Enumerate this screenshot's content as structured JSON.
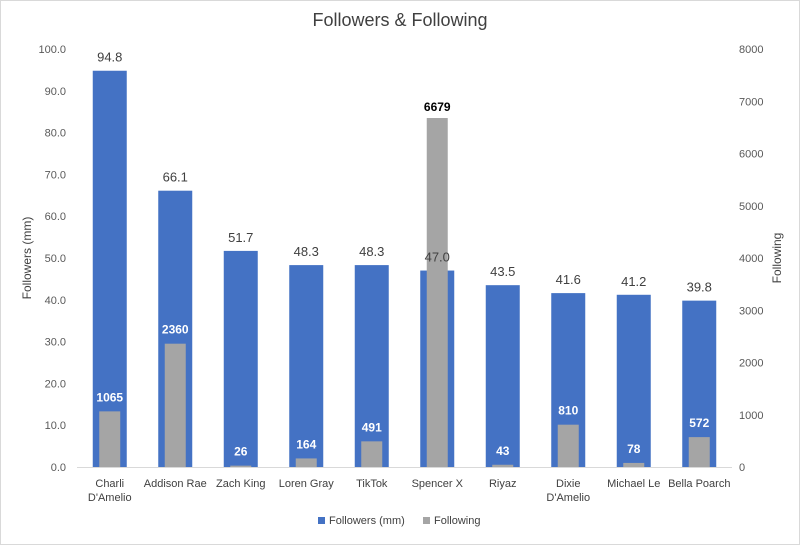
{
  "chart_data": {
    "type": "bar",
    "title": "Followers & Following",
    "categories": [
      [
        "Charli",
        "D'Amelio"
      ],
      [
        "Addison Rae"
      ],
      [
        "Zach King"
      ],
      [
        "Loren Gray"
      ],
      [
        "TikTok"
      ],
      [
        "Spencer X"
      ],
      [
        "Riyaz"
      ],
      [
        "Dixie",
        "D'Amelio"
      ],
      [
        "Michael Le"
      ],
      [
        "Bella Poarch"
      ]
    ],
    "series": [
      {
        "name": "Followers (mm)",
        "axis": "left",
        "color": "#4472C4",
        "values": [
          94.8,
          66.1,
          51.7,
          48.3,
          48.3,
          47.0,
          43.5,
          41.6,
          41.2,
          39.8
        ],
        "labels": [
          "94.8",
          "66.1",
          "51.7",
          "48.3",
          "48.3",
          "47.0",
          "43.5",
          "41.6",
          "41.2",
          "39.8"
        ]
      },
      {
        "name": "Following",
        "axis": "right",
        "color": "#A5A5A5",
        "values": [
          1065,
          2360,
          26,
          164,
          491,
          6679,
          43,
          810,
          78,
          572
        ],
        "labels": [
          "1065",
          "2360",
          "26",
          "164",
          "491",
          "6679",
          "43",
          "810",
          "78",
          "572"
        ]
      }
    ],
    "ylabel": "Followers (mm)",
    "y2label": "Following",
    "ylim": [
      0,
      100
    ],
    "y2lim": [
      0,
      8000
    ],
    "yticks": [
      "0.0",
      "10.0",
      "20.0",
      "30.0",
      "40.0",
      "50.0",
      "60.0",
      "70.0",
      "80.0",
      "90.0",
      "100.0"
    ],
    "y2ticks": [
      "0",
      "1000",
      "2000",
      "3000",
      "4000",
      "5000",
      "6000",
      "7000",
      "8000"
    ],
    "grid": false,
    "legend": "bottom"
  }
}
